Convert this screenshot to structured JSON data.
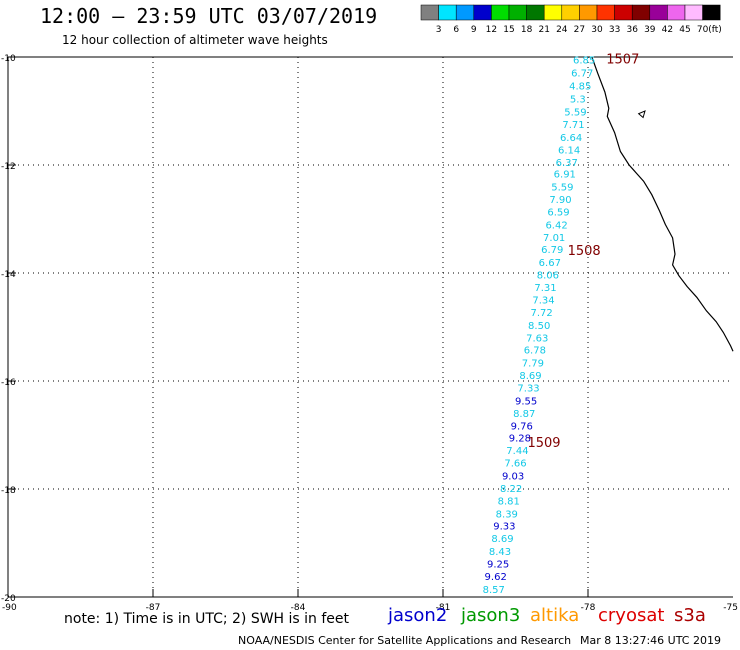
{
  "header": {
    "title": "12:00 — 23:59 UTC 03/07/2019",
    "subtitle": "12 hour collection of altimeter wave heights"
  },
  "legend": {
    "unit": "(ft)",
    "items": [
      {
        "label": "3",
        "color": "#808080"
      },
      {
        "label": "6",
        "color": "#00e5ff"
      },
      {
        "label": "9",
        "color": "#0099ff"
      },
      {
        "label": "12",
        "color": "#0000cc"
      },
      {
        "label": "15",
        "color": "#00dd00"
      },
      {
        "label": "18",
        "color": "#00b000"
      },
      {
        "label": "21",
        "color": "#007700"
      },
      {
        "label": "24",
        "color": "#ffff00"
      },
      {
        "label": "27",
        "color": "#ffd000"
      },
      {
        "label": "30",
        "color": "#ff9900"
      },
      {
        "label": "33",
        "color": "#ff3300"
      },
      {
        "label": "36",
        "color": "#cc0000"
      },
      {
        "label": "39",
        "color": "#800000"
      },
      {
        "label": "42",
        "color": "#990099"
      },
      {
        "label": "45",
        "color": "#ee66ee"
      },
      {
        "label": "70",
        "color": "#ffbbff"
      },
      {
        "label": "",
        "color": "#000000"
      }
    ]
  },
  "axes": {
    "lat_labels": [
      "-10",
      "-12",
      "-14",
      "-16",
      "-18",
      "-20"
    ],
    "lon_labels": [
      "-90",
      "-87",
      "-84",
      "-81",
      "-78",
      "-75"
    ]
  },
  "colors": {
    "cyan": "#12c8e6",
    "blue": "#0000cc",
    "hour": "#800000",
    "coast": "#000000"
  },
  "track": [
    {
      "v": "6.85",
      "c": "cyan",
      "lat": -10.05,
      "lon": -78.08
    },
    {
      "v": "6.77",
      "c": "cyan",
      "lat": -10.29,
      "lon": -78.12
    },
    {
      "v": "4.85",
      "c": "cyan",
      "lat": -10.53,
      "lon": -78.16
    },
    {
      "v": "5.3",
      "c": "cyan",
      "lat": -10.77,
      "lon": -78.21
    },
    {
      "v": "5.59",
      "c": "cyan",
      "lat": -11.01,
      "lon": -78.26
    },
    {
      "v": "7.71",
      "c": "cyan",
      "lat": -11.24,
      "lon": -78.3
    },
    {
      "v": "6.64",
      "c": "cyan",
      "lat": -11.48,
      "lon": -78.35
    },
    {
      "v": "6.14",
      "c": "cyan",
      "lat": -11.71,
      "lon": -78.39
    },
    {
      "v": "6.37",
      "c": "cyan",
      "lat": -11.94,
      "lon": -78.44
    },
    {
      "v": "6.91",
      "c": "cyan",
      "lat": -12.16,
      "lon": -78.48
    },
    {
      "v": "5.59",
      "c": "cyan",
      "lat": -12.4,
      "lon": -78.53
    },
    {
      "v": "7.90",
      "c": "cyan",
      "lat": -12.63,
      "lon": -78.57
    },
    {
      "v": "6.59",
      "c": "cyan",
      "lat": -12.86,
      "lon": -78.61
    },
    {
      "v": "6.42",
      "c": "cyan",
      "lat": -13.1,
      "lon": -78.65
    },
    {
      "v": "7.01",
      "c": "cyan",
      "lat": -13.33,
      "lon": -78.7
    },
    {
      "v": "6.79",
      "c": "cyan",
      "lat": -13.56,
      "lon": -78.74
    },
    {
      "v": "6.67",
      "c": "cyan",
      "lat": -13.8,
      "lon": -78.79
    },
    {
      "v": "8.06",
      "c": "cyan",
      "lat": -14.03,
      "lon": -78.83
    },
    {
      "v": "7.31",
      "c": "cyan",
      "lat": -14.26,
      "lon": -78.88
    },
    {
      "v": "7.34",
      "c": "cyan",
      "lat": -14.49,
      "lon": -78.92
    },
    {
      "v": "7.72",
      "c": "cyan",
      "lat": -14.72,
      "lon": -78.96
    },
    {
      "v": "8.50",
      "c": "cyan",
      "lat": -14.96,
      "lon": -79.01
    },
    {
      "v": "7.63",
      "c": "cyan",
      "lat": -15.19,
      "lon": -79.05
    },
    {
      "v": "6.78",
      "c": "cyan",
      "lat": -15.42,
      "lon": -79.1
    },
    {
      "v": "7.79",
      "c": "cyan",
      "lat": -15.66,
      "lon": -79.14
    },
    {
      "v": "8.69",
      "c": "cyan",
      "lat": -15.89,
      "lon": -79.19
    },
    {
      "v": "7.33",
      "c": "cyan",
      "lat": -16.12,
      "lon": -79.23
    },
    {
      "v": "9.55",
      "c": "blue",
      "lat": -16.36,
      "lon": -79.28
    },
    {
      "v": "8.87",
      "c": "cyan",
      "lat": -16.59,
      "lon": -79.32
    },
    {
      "v": "9.76",
      "c": "blue",
      "lat": -16.82,
      "lon": -79.37
    },
    {
      "v": "9.28",
      "c": "blue",
      "lat": -17.05,
      "lon": -79.41
    },
    {
      "v": "7.44",
      "c": "cyan",
      "lat": -17.28,
      "lon": -79.46
    },
    {
      "v": "7.66",
      "c": "cyan",
      "lat": -17.51,
      "lon": -79.5
    },
    {
      "v": "9.03",
      "c": "blue",
      "lat": -17.75,
      "lon": -79.55
    },
    {
      "v": "8.22",
      "c": "cyan",
      "lat": -17.98,
      "lon": -79.59
    },
    {
      "v": "8.81",
      "c": "cyan",
      "lat": -18.21,
      "lon": -79.64
    },
    {
      "v": "8.39",
      "c": "cyan",
      "lat": -18.45,
      "lon": -79.68
    },
    {
      "v": "9.33",
      "c": "blue",
      "lat": -18.68,
      "lon": -79.73
    },
    {
      "v": "8.69",
      "c": "cyan",
      "lat": -18.91,
      "lon": -79.77
    },
    {
      "v": "8.43",
      "c": "cyan",
      "lat": -19.15,
      "lon": -79.82
    },
    {
      "v": "9.25",
      "c": "blue",
      "lat": -19.38,
      "lon": -79.86
    },
    {
      "v": "9.62",
      "c": "blue",
      "lat": -19.61,
      "lon": -79.91
    },
    {
      "v": "8.57",
      "c": "cyan",
      "lat": -19.85,
      "lon": -79.95
    }
  ],
  "hour_marks": [
    {
      "label": "1507",
      "lat": -10.03,
      "lon": -77.28
    },
    {
      "label": "1508",
      "lat": -13.57,
      "lon": -78.08
    },
    {
      "label": "1509",
      "lat": -17.13,
      "lon": -78.91
    }
  ],
  "coastline": [
    [
      -10.0,
      -77.92
    ],
    [
      -10.3,
      -77.8
    ],
    [
      -10.65,
      -77.65
    ],
    [
      -10.95,
      -77.57
    ],
    [
      -11.1,
      -77.6
    ],
    [
      -11.4,
      -77.45
    ],
    [
      -11.75,
      -77.33
    ],
    [
      -12.0,
      -77.15
    ],
    [
      -12.3,
      -76.85
    ],
    [
      -12.55,
      -76.68
    ],
    [
      -12.85,
      -76.52
    ],
    [
      -13.1,
      -76.4
    ],
    [
      -13.35,
      -76.25
    ],
    [
      -13.65,
      -76.2
    ],
    [
      -13.85,
      -76.25
    ],
    [
      -14.05,
      -76.12
    ],
    [
      -14.25,
      -75.95
    ],
    [
      -14.45,
      -75.75
    ],
    [
      -14.7,
      -75.55
    ],
    [
      -14.9,
      -75.35
    ],
    [
      -15.1,
      -75.2
    ],
    [
      -15.35,
      -75.05
    ],
    [
      -15.45,
      -75.0
    ]
  ],
  "island": [
    [
      -11.05,
      -76.95
    ],
    [
      -11.12,
      -76.86
    ],
    [
      -11.0,
      -76.82
    ]
  ],
  "note": "note:  1) Time is in UTC;  2) SWH is in feet",
  "satellites": [
    {
      "name": "jason2",
      "color": "#0000cc"
    },
    {
      "name": "jason3",
      "color": "#009900"
    },
    {
      "name": "altika",
      "color": "#ff9900"
    },
    {
      "name": "cryosat",
      "color": "#dd0000"
    },
    {
      "name": "s3a",
      "color": "#aa0000"
    }
  ],
  "footer": {
    "center": "NOAA/NESDIS Center for Satellite Applications and Research",
    "timestamp": "Mar  8 13:27:46 UTC 2019"
  }
}
